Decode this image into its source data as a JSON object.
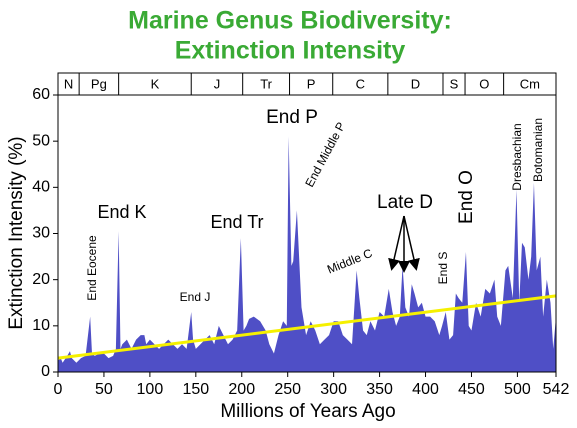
{
  "chart_data": {
    "type": "area",
    "title": [
      "Marine Genus Biodiversity:",
      "Extinction Intensity"
    ],
    "x_label": "Millions of Years Ago",
    "y_label": "Extinction Intensity (%)",
    "color": "#4f4fc6",
    "xlim": [
      0,
      542
    ],
    "xticks": [
      0,
      50,
      100,
      150,
      200,
      250,
      300,
      350,
      400,
      450,
      500,
      542
    ],
    "ylim": [
      0,
      60
    ],
    "yticks": [
      0,
      10,
      20,
      30,
      40,
      50,
      60
    ],
    "x": [
      0,
      3,
      5,
      10,
      13,
      15,
      20,
      25,
      30,
      35,
      37,
      40,
      45,
      50,
      55,
      60,
      63,
      66,
      68,
      70,
      75,
      80,
      85,
      90,
      94,
      96,
      100,
      105,
      110,
      115,
      120,
      125,
      130,
      135,
      140,
      145,
      147,
      150,
      155,
      160,
      165,
      170,
      175,
      180,
      185,
      190,
      195,
      199,
      202,
      205,
      208,
      213,
      220,
      226,
      230,
      235,
      240,
      245,
      249,
      251,
      254,
      256,
      260,
      265,
      270,
      275,
      280,
      285,
      290,
      295,
      300,
      305,
      310,
      315,
      320,
      325,
      328,
      332,
      336,
      340,
      345,
      350,
      355,
      360,
      364,
      368,
      372,
      375,
      378,
      382,
      385,
      388,
      392,
      396,
      400,
      405,
      410,
      415,
      418,
      422,
      426,
      430,
      433,
      436,
      440,
      444,
      447,
      450,
      455,
      460,
      465,
      470,
      475,
      478,
      482,
      487,
      490,
      495,
      499,
      502,
      505,
      508,
      512,
      515,
      518,
      521,
      525,
      528,
      532,
      536,
      539,
      542
    ],
    "values": [
      2.5,
      3,
      2,
      3.5,
      4.5,
      3,
      2,
      3,
      3.5,
      12,
      4,
      3.5,
      4,
      4,
      3,
      3.5,
      5,
      30.5,
      5,
      6,
      7,
      5,
      7,
      8,
      8,
      6,
      7,
      6,
      5,
      6,
      7,
      6,
      5,
      6,
      5,
      13,
      7,
      5,
      6,
      7,
      8,
      6,
      10,
      8,
      6,
      7,
      9,
      29,
      9,
      10,
      11.5,
      12,
      11,
      9,
      6,
      4,
      8,
      11,
      10,
      51,
      23,
      24,
      35,
      14,
      8,
      11,
      9,
      6,
      7,
      8,
      11,
      11,
      8,
      7,
      6,
      22,
      16,
      9,
      8,
      11,
      9,
      13,
      12,
      18,
      13,
      10,
      12,
      23,
      14,
      12,
      19,
      17,
      14,
      15,
      12,
      12,
      11,
      8,
      10,
      13,
      7,
      8,
      17,
      16,
      15,
      26,
      10,
      9,
      15,
      12,
      18,
      17,
      20,
      12,
      10,
      22,
      23,
      16,
      39.5,
      15,
      28,
      27,
      20,
      25,
      41,
      22,
      25,
      12,
      20,
      15,
      5,
      12
    ],
    "trend": {
      "x": [
        0,
        542
      ],
      "values": [
        3,
        16.5
      ],
      "color": "#f5f000"
    },
    "periods": [
      {
        "label": "N",
        "start": 0,
        "end": 23
      },
      {
        "label": "Pg",
        "start": 23,
        "end": 66
      },
      {
        "label": "K",
        "start": 66,
        "end": 145
      },
      {
        "label": "J",
        "start": 145,
        "end": 201
      },
      {
        "label": "Tr",
        "start": 201,
        "end": 252
      },
      {
        "label": "P",
        "start": 252,
        "end": 299
      },
      {
        "label": "C",
        "start": 299,
        "end": 359
      },
      {
        "label": "D",
        "start": 359,
        "end": 419
      },
      {
        "label": "S",
        "start": 419,
        "end": 443
      },
      {
        "label": "O",
        "start": 443,
        "end": 485
      },
      {
        "label": "Cm",
        "start": 485,
        "end": 542
      }
    ],
    "annotations": [
      "End Eocene",
      "End K",
      "End J",
      "End Tr",
      "End P",
      "End Middle P",
      "Middle C",
      "Late D",
      "End S",
      "End O",
      "Dresbachian",
      "Botomanian"
    ]
  }
}
